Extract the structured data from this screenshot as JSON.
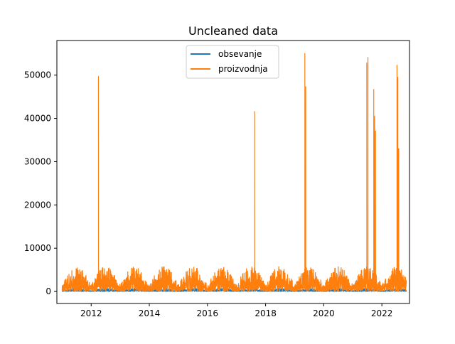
{
  "chart_data": {
    "type": "line",
    "title": "Uncleaned data",
    "xlabel": "",
    "ylabel": "",
    "xlim": [
      2010.82,
      2022.95
    ],
    "ylim": [
      -2780,
      58000
    ],
    "x_ticks": [
      {
        "value": 2012,
        "label": "2012"
      },
      {
        "value": 2014,
        "label": "2014"
      },
      {
        "value": 2016,
        "label": "2016"
      },
      {
        "value": 2018,
        "label": "2018"
      },
      {
        "value": 2020,
        "label": "2020"
      },
      {
        "value": 2022,
        "label": "2022"
      }
    ],
    "y_ticks": [
      {
        "value": 0,
        "label": "0"
      },
      {
        "value": 10000,
        "label": "10000"
      },
      {
        "value": 20000,
        "label": "20000"
      },
      {
        "value": 30000,
        "label": "30000"
      },
      {
        "value": 40000,
        "label": "40000"
      },
      {
        "value": 50000,
        "label": "50000"
      }
    ],
    "x_range": [
      2011.0,
      2022.85
    ],
    "legend_position": "top-center",
    "grid": false,
    "series": [
      {
        "name": "obsevanje",
        "color": "#1f77b4",
        "seasonal_max": 700,
        "spikes": []
      },
      {
        "name": "proizvodnja",
        "color": "#ff7f0e",
        "seasonal_max": 5800,
        "spikes": [
          {
            "x": 2012.25,
            "y": 49700
          },
          {
            "x": 2017.62,
            "y": 41600
          },
          {
            "x": 2019.35,
            "y": 55000
          },
          {
            "x": 2019.38,
            "y": 47300
          },
          {
            "x": 2021.48,
            "y": 52800
          },
          {
            "x": 2021.52,
            "y": 54100
          },
          {
            "x": 2021.72,
            "y": 46700
          },
          {
            "x": 2021.75,
            "y": 40500
          },
          {
            "x": 2021.78,
            "y": 37100
          },
          {
            "x": 2022.52,
            "y": 52300
          },
          {
            "x": 2022.55,
            "y": 49500
          },
          {
            "x": 2022.58,
            "y": 33000
          }
        ]
      }
    ]
  }
}
